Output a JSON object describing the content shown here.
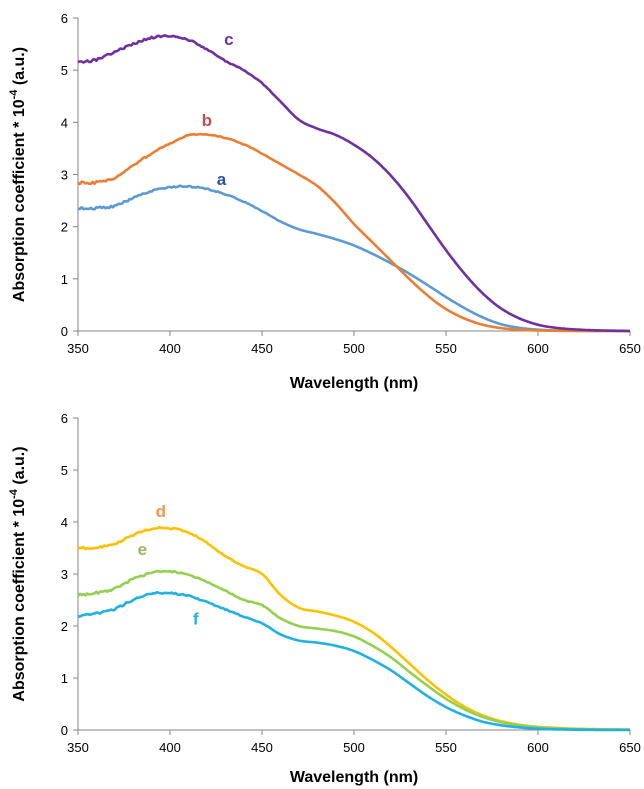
{
  "chart_data": [
    {
      "type": "line",
      "xlabel": "Wavelength (nm)",
      "ylabel": "Absorption coefficient * 10",
      "ylabel_exponent": "-4",
      "ylabel_suffix": " (a.u.)",
      "xlim": [
        350,
        650
      ],
      "ylim": [
        0,
        6
      ],
      "xticks": [
        350,
        400,
        450,
        500,
        550,
        600,
        650
      ],
      "yticks": [
        0,
        1,
        2,
        3,
        4,
        5,
        6
      ],
      "grid": false,
      "series": [
        {
          "name": "a",
          "color": "#5b9bd5",
          "label_color": "#2e5597",
          "label_at": [
            428,
            2.8
          ],
          "x": [
            350,
            360,
            370,
            380,
            390,
            400,
            410,
            420,
            430,
            440,
            450,
            460,
            470,
            480,
            490,
            500,
            510,
            520,
            530,
            540,
            550,
            560,
            570,
            580,
            590,
            600,
            610,
            620,
            630,
            640,
            650
          ],
          "y": [
            2.35,
            2.36,
            2.4,
            2.55,
            2.68,
            2.76,
            2.77,
            2.72,
            2.62,
            2.48,
            2.3,
            2.1,
            1.95,
            1.86,
            1.76,
            1.64,
            1.48,
            1.3,
            1.1,
            0.88,
            0.65,
            0.44,
            0.26,
            0.13,
            0.06,
            0.025,
            0.01,
            0.005,
            0.002,
            0.001,
            0.0
          ]
        },
        {
          "name": "b",
          "color": "#ed7d31",
          "label_color": "#c0504d",
          "label_at": [
            420,
            3.93
          ],
          "x": [
            350,
            360,
            370,
            380,
            390,
            400,
            410,
            420,
            430,
            440,
            450,
            460,
            470,
            480,
            490,
            500,
            510,
            520,
            530,
            540,
            550,
            560,
            570,
            580,
            590,
            600,
            610,
            620,
            630,
            640,
            650
          ],
          "y": [
            2.84,
            2.85,
            2.93,
            3.18,
            3.4,
            3.6,
            3.75,
            3.76,
            3.7,
            3.58,
            3.4,
            3.2,
            3.0,
            2.78,
            2.45,
            2.05,
            1.7,
            1.35,
            1.0,
            0.68,
            0.42,
            0.24,
            0.12,
            0.055,
            0.025,
            0.01,
            0.005,
            0.002,
            0.001,
            0.0,
            0.0
          ]
        },
        {
          "name": "c",
          "color": "#7030a0",
          "label_color": "#7030a0",
          "label_at": [
            432,
            5.48
          ],
          "x": [
            350,
            360,
            370,
            380,
            390,
            400,
            410,
            420,
            430,
            440,
            450,
            460,
            470,
            480,
            490,
            500,
            510,
            520,
            530,
            540,
            550,
            560,
            570,
            580,
            590,
            600,
            610,
            620,
            630,
            640,
            650
          ],
          "y": [
            5.15,
            5.2,
            5.35,
            5.5,
            5.62,
            5.65,
            5.58,
            5.4,
            5.18,
            5.0,
            4.75,
            4.4,
            4.05,
            3.88,
            3.76,
            3.57,
            3.32,
            2.98,
            2.55,
            2.05,
            1.55,
            1.1,
            0.72,
            0.43,
            0.24,
            0.12,
            0.06,
            0.03,
            0.015,
            0.006,
            0.002
          ]
        }
      ]
    },
    {
      "type": "line",
      "xlabel": "Wavelength (nm)",
      "ylabel": "Absorption coefficient * 10",
      "ylabel_exponent": "-4",
      "ylabel_suffix": " (a.u.)",
      "xlim": [
        350,
        650
      ],
      "ylim": [
        0,
        6
      ],
      "xticks": [
        350,
        400,
        450,
        500,
        550,
        600,
        650
      ],
      "yticks": [
        0,
        1,
        2,
        3,
        4,
        5,
        6
      ],
      "grid": false,
      "series": [
        {
          "name": "d",
          "color": "#ffc000",
          "label_color": "#f79646",
          "label_at": [
            395,
            4.1
          ],
          "x": [
            350,
            360,
            370,
            380,
            390,
            400,
            410,
            420,
            430,
            440,
            450,
            460,
            470,
            480,
            490,
            500,
            510,
            520,
            530,
            540,
            550,
            560,
            570,
            580,
            590,
            600,
            610,
            620,
            630,
            640,
            650
          ],
          "y": [
            3.5,
            3.5,
            3.58,
            3.75,
            3.87,
            3.88,
            3.8,
            3.6,
            3.35,
            3.15,
            3.0,
            2.6,
            2.35,
            2.28,
            2.2,
            2.08,
            1.88,
            1.6,
            1.28,
            0.96,
            0.68,
            0.45,
            0.28,
            0.17,
            0.1,
            0.06,
            0.04,
            0.025,
            0.018,
            0.012,
            0.01
          ]
        },
        {
          "name": "e",
          "color": "#92d050",
          "label_color": "#9bbb59",
          "label_at": [
            385,
            3.37
          ],
          "x": [
            350,
            360,
            370,
            380,
            390,
            400,
            410,
            420,
            430,
            440,
            450,
            460,
            470,
            480,
            490,
            500,
            510,
            520,
            530,
            540,
            550,
            560,
            570,
            580,
            590,
            600,
            610,
            620,
            630,
            640,
            650
          ],
          "y": [
            2.6,
            2.64,
            2.72,
            2.9,
            3.02,
            3.05,
            2.98,
            2.85,
            2.68,
            2.5,
            2.4,
            2.15,
            2.0,
            1.95,
            1.9,
            1.8,
            1.62,
            1.4,
            1.12,
            0.85,
            0.6,
            0.4,
            0.25,
            0.15,
            0.09,
            0.05,
            0.03,
            0.02,
            0.012,
            0.008,
            0.005
          ]
        },
        {
          "name": "f",
          "color": "#1fb1e6",
          "label_color": "#1fb1e6",
          "label_at": [
            414,
            2.03
          ],
          "x": [
            350,
            360,
            370,
            380,
            390,
            400,
            410,
            420,
            430,
            440,
            450,
            460,
            470,
            480,
            490,
            500,
            510,
            520,
            530,
            540,
            550,
            560,
            570,
            580,
            590,
            600,
            610,
            620,
            630,
            640,
            650
          ],
          "y": [
            2.2,
            2.24,
            2.33,
            2.5,
            2.62,
            2.63,
            2.58,
            2.46,
            2.32,
            2.18,
            2.05,
            1.84,
            1.72,
            1.68,
            1.62,
            1.52,
            1.35,
            1.15,
            0.9,
            0.65,
            0.44,
            0.28,
            0.16,
            0.09,
            0.05,
            0.025,
            0.012,
            0.006,
            0.003,
            0.002,
            0.001
          ]
        }
      ]
    }
  ]
}
